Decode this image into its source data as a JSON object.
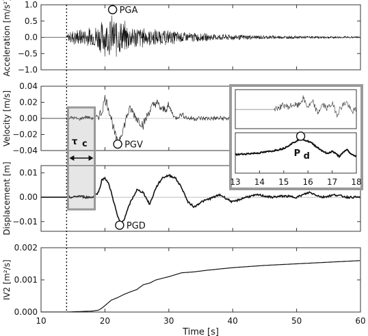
{
  "chart_data": [
    {
      "type": "line",
      "panel": "acceleration",
      "ylabel": "Acceleration [m/s²]",
      "ylim": [
        -1.0,
        1.0
      ],
      "yticks": [
        "1.0",
        "0.5",
        "0.0",
        "−0.5",
        "−1.0"
      ],
      "yticks_values": [
        1.0,
        0.5,
        0.0,
        -0.5,
        -1.0
      ],
      "xlim": [
        10,
        60
      ],
      "annotation": {
        "label": "PGA",
        "x": 21.2,
        "y": 0.85
      },
      "envelope": {
        "x": [
          10,
          14,
          14.2,
          15,
          16,
          18,
          19,
          20,
          21,
          22,
          23,
          24,
          25,
          27,
          30,
          33,
          36,
          40,
          45,
          50,
          55,
          60
        ],
        "y": [
          0.0,
          0.0,
          0.15,
          0.28,
          0.3,
          0.35,
          0.5,
          0.6,
          0.75,
          0.7,
          0.55,
          0.45,
          0.4,
          0.3,
          0.25,
          0.18,
          0.13,
          0.1,
          0.07,
          0.05,
          0.04,
          0.03
        ]
      }
    },
    {
      "type": "line",
      "panel": "velocity",
      "ylabel": "Velocity [m/s]",
      "ylim": [
        -0.04,
        0.04
      ],
      "yticks": [
        "0.04",
        "0.02",
        "0.00",
        "−0.02",
        "−0.04"
      ],
      "yticks_values": [
        0.04,
        0.02,
        0.0,
        -0.02,
        -0.04
      ],
      "xlim": [
        10,
        60
      ],
      "annotation": {
        "label": "PGV",
        "x": 22.0,
        "y": -0.032
      },
      "x": [
        10,
        14,
        15,
        16,
        17,
        18,
        19,
        19.5,
        20,
        20.5,
        21,
        21.5,
        22,
        22.5,
        23,
        23.5,
        24,
        25,
        26,
        27,
        28,
        29,
        30,
        31,
        32,
        33
      ],
      "y": [
        0.0,
        0.0,
        0.001,
        -0.001,
        0.002,
        0.0,
        0.003,
        0.008,
        0.025,
        0.015,
        0.0,
        -0.018,
        -0.032,
        -0.02,
        -0.01,
        0.005,
        0.012,
        0.0,
        -0.008,
        0.01,
        0.02,
        0.01,
        0.015,
        0.0,
        0.005,
        0.0
      ]
    },
    {
      "type": "line",
      "panel": "displacement",
      "ylabel": "Displacement [m]",
      "ylim": [
        -0.014,
        0.013
      ],
      "yticks": [
        "0.01",
        "0.00",
        "−0.01"
      ],
      "yticks_values": [
        0.01,
        0.0,
        -0.01
      ],
      "xlim": [
        10,
        60
      ],
      "annotation": {
        "label": "PGD",
        "x": 22.3,
        "y": -0.0115
      },
      "x": [
        10,
        14,
        15,
        16,
        17,
        18,
        19,
        19.5,
        20,
        20.5,
        21,
        22,
        22.5,
        23,
        24,
        25,
        26,
        27,
        28,
        29,
        30,
        31,
        32,
        33,
        34,
        35,
        36,
        38,
        40,
        42,
        44,
        46,
        48,
        50,
        52,
        54,
        56,
        58,
        60
      ],
      "y": [
        0.0,
        0.0,
        0.0,
        0.0005,
        0.0,
        0.0,
        0.002,
        0.007,
        0.008,
        0.006,
        0.002,
        -0.008,
        -0.011,
        -0.009,
        -0.002,
        0.003,
        0.002,
        -0.003,
        0.004,
        0.008,
        0.009,
        0.008,
        0.004,
        -0.002,
        -0.004,
        -0.002,
        -0.001,
        0.001,
        -0.002,
        0.0,
        0.001,
        0.0,
        0.0005,
        0.0,
        0.002,
        0.0,
        0.001,
        0.0,
        0.0
      ]
    },
    {
      "type": "line",
      "panel": "IV2",
      "ylabel": "IV2 [m²/s]",
      "xlabel": "Time [s]",
      "ylim": [
        0.0,
        0.002
      ],
      "yticks": [
        "0.002",
        "0.001",
        "0.000"
      ],
      "yticks_values": [
        0.002,
        0.001,
        0.0
      ],
      "xlim": [
        10,
        60
      ],
      "xticks": [
        "10",
        "20",
        "30",
        "40",
        "50",
        "60"
      ],
      "xticks_values": [
        10,
        20,
        30,
        40,
        50,
        60
      ],
      "x": [
        10,
        14,
        18,
        19,
        19.5,
        20,
        21,
        22,
        23,
        24,
        25,
        26,
        27,
        28,
        29,
        30,
        32,
        34,
        36,
        38,
        40,
        45,
        50,
        55,
        60
      ],
      "y": [
        0.0,
        0.0,
        3e-05,
        6e-05,
        0.00012,
        0.0002,
        0.00037,
        0.00045,
        0.00055,
        0.00063,
        0.0007,
        0.00085,
        0.0009,
        0.001,
        0.00105,
        0.0011,
        0.00122,
        0.00125,
        0.0013,
        0.00134,
        0.00138,
        0.00145,
        0.0015,
        0.00155,
        0.0016
      ]
    },
    {
      "type": "line",
      "panel": "inset",
      "xlim": [
        13,
        18
      ],
      "xticks": [
        "13",
        "14",
        "15",
        "16",
        "17",
        "18"
      ],
      "xticks_values": [
        13,
        14,
        15,
        16,
        17,
        18
      ],
      "annotation": {
        "label": "Pd",
        "label_main": "P",
        "label_sub": "d",
        "x": 15.7
      },
      "top_x": [
        13,
        14.6,
        14.8,
        15.0,
        15.2,
        15.4,
        15.6,
        15.8,
        16.0,
        16.2,
        16.4,
        16.6,
        16.8,
        17.0,
        17.2,
        17.4,
        17.6,
        17.8,
        18
      ],
      "top_y": [
        0.0,
        0.0,
        0.15,
        0.35,
        0.2,
        0.4,
        0.3,
        0.9,
        0.2,
        0.6,
        -0.3,
        0.4,
        0.1,
        0.5,
        -0.4,
        0.3,
        0.6,
        -0.2,
        0.0
      ],
      "bottom_x": [
        13,
        13.5,
        14,
        14.5,
        15,
        15.3,
        15.5,
        15.7,
        15.9,
        16.1,
        16.3,
        16.5,
        16.8,
        17.0,
        17.3,
        17.6,
        17.8,
        18
      ],
      "bottom_y": [
        0.0,
        0.05,
        0.1,
        0.2,
        0.35,
        0.6,
        0.75,
        0.95,
        0.8,
        0.7,
        0.5,
        0.3,
        0.05,
        0.2,
        -0.1,
        0.3,
        0.0,
        -0.1
      ]
    }
  ],
  "tau_c": {
    "label": "τ",
    "sub": "c",
    "x_start": 14.0,
    "x_end": 18.3
  },
  "trigger": {
    "x": 14.0
  }
}
